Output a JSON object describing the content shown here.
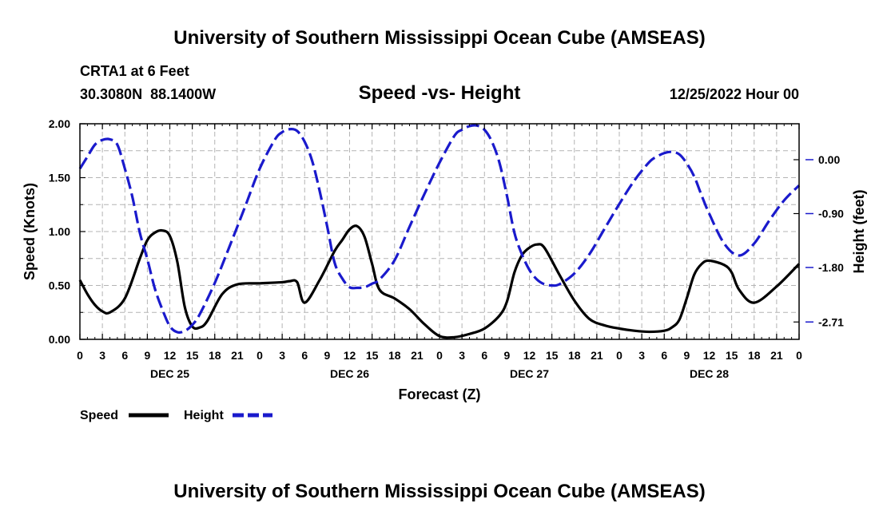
{
  "header": {
    "title": "University of Southern Mississippi Ocean Cube (AMSEAS)",
    "station": "CRTA1 at 6 Feet",
    "coords": "30.3080N  88.1400W",
    "date": "12/25/2022 Hour 00"
  },
  "footer": {
    "title": "University of Southern Mississippi Ocean Cube (AMSEAS)"
  },
  "chart_data": {
    "type": "line",
    "title": "Speed -vs- Height",
    "xlabel": "Forecast (Z)",
    "ylabel": "Speed (Knots)",
    "y2label": "Height (feet)",
    "x_hours_range": [
      0,
      96
    ],
    "ylim": [
      0,
      2.0
    ],
    "y2lim": [
      -3.0,
      0.6
    ],
    "grid": true,
    "legend_position": "bottom-left",
    "x_tick_labels": [
      "0",
      "3",
      "6",
      "9",
      "12",
      "15",
      "18",
      "21",
      "0",
      "3",
      "6",
      "9",
      "12",
      "15",
      "18",
      "21",
      "0",
      "3",
      "6",
      "9",
      "12",
      "15",
      "18",
      "21",
      "0",
      "3",
      "6",
      "9",
      "12",
      "15",
      "18",
      "21",
      "0"
    ],
    "date_labels": [
      {
        "label": "DEC 25",
        "hour": 12
      },
      {
        "label": "DEC 26",
        "hour": 36
      },
      {
        "label": "DEC 27",
        "hour": 60
      },
      {
        "label": "DEC 28",
        "hour": 84
      }
    ],
    "y_ticks": [
      "0.00",
      "0.50",
      "1.00",
      "1.50",
      "2.00"
    ],
    "y2_ticks": [
      "0.00",
      "-0.90",
      "-1.80",
      "-2.71"
    ],
    "series": [
      {
        "name": "Speed",
        "axis": "left",
        "color": "#000000",
        "style": "solid",
        "x": [
          0,
          1,
          2,
          3,
          4,
          6,
          8,
          9,
          10,
          11,
          12,
          13,
          14,
          15,
          16,
          17,
          19,
          21,
          24,
          27,
          28,
          29,
          30,
          32,
          34,
          35,
          36,
          37,
          38,
          39,
          40,
          42,
          44,
          46,
          48,
          50,
          52,
          54,
          56,
          57,
          58,
          59,
          60,
          61,
          62,
          64,
          66,
          68,
          70,
          72,
          74,
          76,
          78,
          79,
          80,
          81,
          82,
          83,
          84,
          86,
          87,
          88,
          90,
          93,
          96
        ],
        "values": [
          0.55,
          0.42,
          0.32,
          0.26,
          0.25,
          0.38,
          0.75,
          0.92,
          0.99,
          1.01,
          0.96,
          0.72,
          0.3,
          0.12,
          0.11,
          0.17,
          0.42,
          0.51,
          0.52,
          0.53,
          0.54,
          0.53,
          0.34,
          0.55,
          0.82,
          0.92,
          1.02,
          1.05,
          0.95,
          0.7,
          0.46,
          0.38,
          0.28,
          0.14,
          0.03,
          0.02,
          0.05,
          0.1,
          0.22,
          0.35,
          0.62,
          0.78,
          0.85,
          0.88,
          0.85,
          0.6,
          0.36,
          0.19,
          0.13,
          0.1,
          0.08,
          0.07,
          0.08,
          0.11,
          0.18,
          0.38,
          0.6,
          0.7,
          0.73,
          0.69,
          0.62,
          0.46,
          0.34,
          0.49,
          0.7
        ]
      },
      {
        "name": "Height",
        "axis": "right",
        "color": "#1a1acc",
        "style": "dashed",
        "x": [
          0,
          1,
          2,
          3,
          4,
          5,
          6,
          7,
          8,
          9,
          10,
          11,
          12,
          13,
          14,
          15,
          16,
          18,
          20,
          22,
          24,
          26,
          27,
          28,
          29,
          30,
          31,
          32,
          33,
          34,
          35,
          36,
          37,
          38,
          39,
          40,
          42,
          44,
          46,
          48,
          50,
          51,
          52,
          53,
          54,
          55,
          56,
          57,
          58,
          59,
          60,
          61,
          62,
          63,
          64,
          66,
          68,
          70,
          72,
          74,
          76,
          77,
          78,
          79,
          80,
          81,
          82,
          83,
          84,
          86,
          88,
          90,
          92,
          94,
          96
        ],
        "values": [
          -0.15,
          0.05,
          0.25,
          0.33,
          0.34,
          0.25,
          -0.15,
          -0.62,
          -1.22,
          -1.66,
          -2.15,
          -2.5,
          -2.78,
          -2.88,
          -2.86,
          -2.76,
          -2.58,
          -2.06,
          -1.44,
          -0.8,
          -0.15,
          0.33,
          0.46,
          0.51,
          0.48,
          0.3,
          -0.02,
          -0.52,
          -1.11,
          -1.72,
          -1.98,
          -2.13,
          -2.14,
          -2.13,
          -2.07,
          -2.0,
          -1.68,
          -1.12,
          -0.57,
          -0.05,
          0.4,
          0.5,
          0.56,
          0.57,
          0.5,
          0.3,
          -0.05,
          -0.6,
          -1.22,
          -1.58,
          -1.84,
          -2.0,
          -2.08,
          -2.1,
          -2.08,
          -1.9,
          -1.58,
          -1.16,
          -0.74,
          -0.35,
          -0.04,
          0.05,
          0.11,
          0.13,
          0.09,
          -0.06,
          -0.28,
          -0.6,
          -0.9,
          -1.4,
          -1.6,
          -1.4,
          -1.02,
          -0.68,
          -0.43
        ]
      }
    ]
  }
}
